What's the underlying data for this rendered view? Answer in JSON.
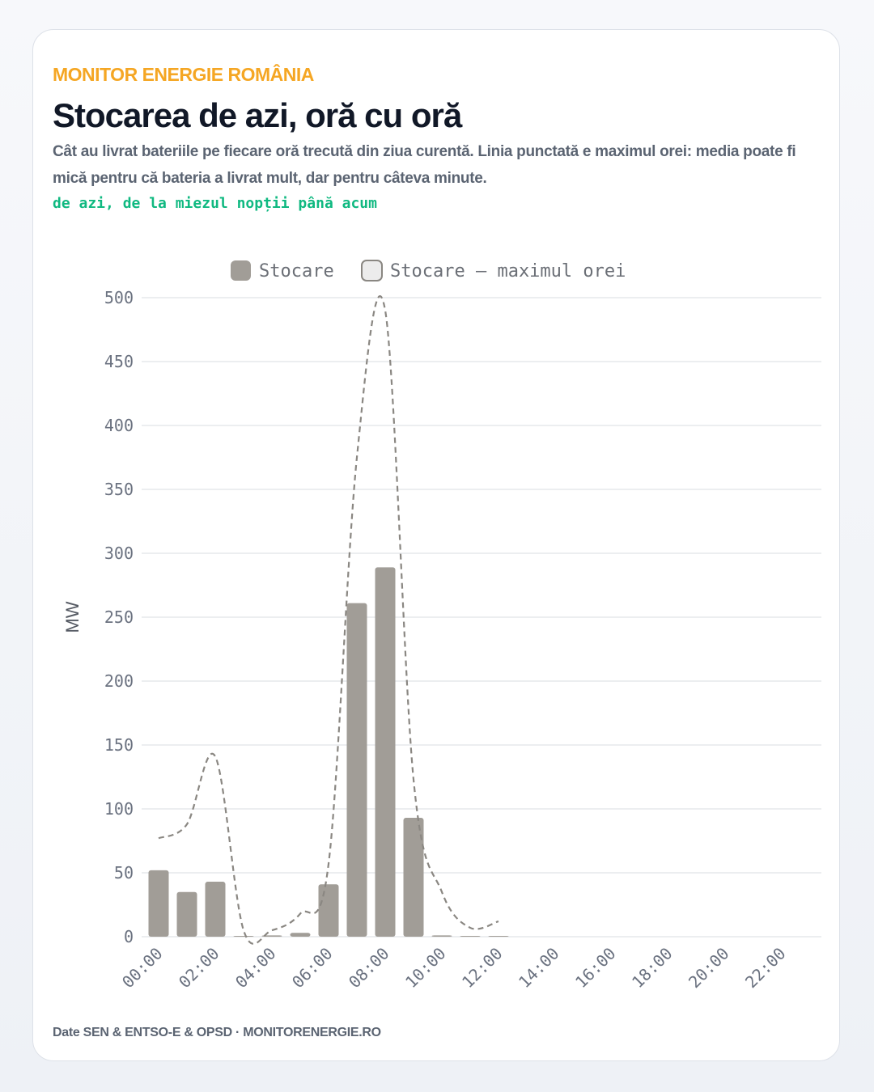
{
  "header": {
    "brand": "MONITOR ENERGIE ROMÂNIA",
    "title": "Stocarea de azi, oră cu oră",
    "subtitle": "Cât au livrat bateriile pe fiecare oră trecută din ziua curentă. Linia punctată e maximul orei: media poate fi mică pentru că bateria a livrat mult, dar pentru câteva minute.",
    "range": "de azi, de la miezul nopții până acum"
  },
  "footer": {
    "source": "Date SEN & ENTSO-E & OPSD · MONITORENERGIE.RO"
  },
  "colors": {
    "bar": "#a19d97",
    "line": "#8a8782",
    "grid": "#e6e8ec",
    "tick": "#6b7280",
    "accent_brand": "#f5a623",
    "accent_range": "#10b981"
  },
  "chart_data": {
    "type": "bar",
    "ylabel": "MW",
    "ylim": [
      0,
      500
    ],
    "yticks": [
      0,
      50,
      100,
      150,
      200,
      250,
      300,
      350,
      400,
      450,
      500
    ],
    "x": [
      "00:00",
      "01:00",
      "02:00",
      "03:00",
      "04:00",
      "05:00",
      "06:00",
      "07:00",
      "08:00",
      "09:00",
      "10:00",
      "11:00",
      "12:00",
      "13:00",
      "14:00",
      "15:00",
      "16:00",
      "17:00",
      "18:00",
      "19:00",
      "20:00",
      "21:00",
      "22:00",
      "23:00"
    ],
    "xtick_labels": [
      "00:00",
      "02:00",
      "04:00",
      "06:00",
      "08:00",
      "10:00",
      "12:00",
      "14:00",
      "16:00",
      "18:00",
      "20:00",
      "22:00"
    ],
    "legend": {
      "placement": "top-center"
    },
    "grid": true,
    "series": [
      {
        "name": "Stocare",
        "kind": "bar",
        "values": [
          52,
          35,
          43,
          0,
          1,
          3,
          41,
          261,
          289,
          93,
          1,
          0.5,
          0.5,
          null,
          null,
          null,
          null,
          null,
          null,
          null,
          null,
          null,
          null,
          null
        ]
      },
      {
        "name": "Stocare — maximul orei",
        "kind": "line-dashed",
        "values": [
          77,
          88,
          141,
          5,
          5,
          18,
          57,
          375,
          490,
          123,
          35,
          7,
          12,
          null,
          null,
          null,
          null,
          null,
          null,
          null,
          null,
          null,
          null,
          null
        ]
      }
    ]
  }
}
